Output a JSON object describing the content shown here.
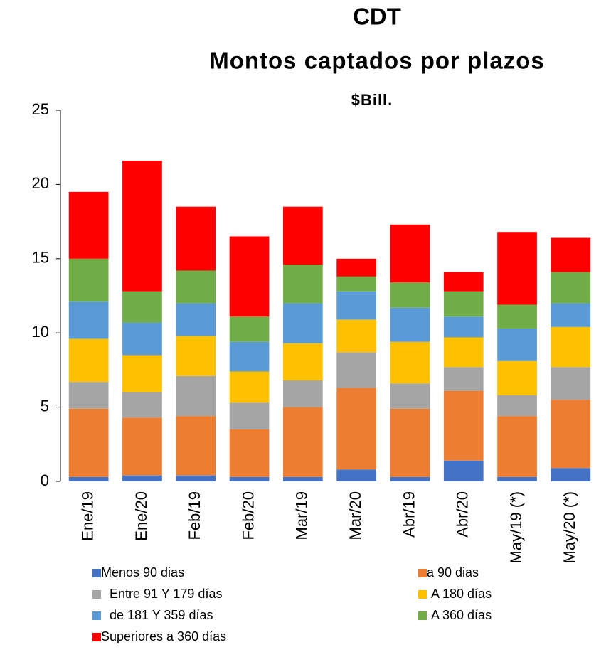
{
  "chart_data": {
    "type": "stacked_bar",
    "title": "CDT",
    "subtitle": "Montos captados por plazos",
    "unit_label": "$Bill.",
    "categories": [
      "Ene/19",
      "Ene/20",
      "Feb/19",
      "Feb/20",
      "Mar/19",
      "Mar/20",
      "Abr/19",
      "Abr/20",
      "May/19 (*)",
      "May/20 (*)"
    ],
    "series": [
      {
        "name": "Menos 90 dias",
        "color": "#4472c4",
        "values": [
          0.3,
          0.4,
          0.4,
          0.3,
          0.3,
          0.8,
          0.3,
          1.4,
          0.3,
          0.9
        ]
      },
      {
        "name": "a 90 dias",
        "color": "#ed7d31",
        "values": [
          4.6,
          3.9,
          4.0,
          3.2,
          4.7,
          5.5,
          4.6,
          4.7,
          4.1,
          4.6
        ]
      },
      {
        "name": "Entre 91 Y 179 días",
        "color": "#a5a5a5",
        "values": [
          1.8,
          1.7,
          2.7,
          1.8,
          1.8,
          2.4,
          1.7,
          1.6,
          1.4,
          2.2
        ]
      },
      {
        "name": "A 180 días",
        "color": "#ffc000",
        "values": [
          2.9,
          2.5,
          2.7,
          2.1,
          2.5,
          2.2,
          2.8,
          2.0,
          2.3,
          2.7
        ]
      },
      {
        "name": "de 181 Y 359 días",
        "color": "#5b9bd5",
        "values": [
          2.5,
          2.2,
          2.2,
          2.0,
          2.7,
          1.9,
          2.3,
          1.4,
          2.2,
          1.6
        ]
      },
      {
        "name": "A 360 días",
        "color": "#70ad47",
        "values": [
          2.9,
          2.1,
          2.2,
          1.7,
          2.6,
          1.0,
          1.7,
          1.7,
          1.6,
          2.1
        ]
      },
      {
        "name": "Superiores a 360 días",
        "color": "#ff0000",
        "values": [
          4.5,
          8.8,
          4.3,
          5.4,
          3.9,
          1.2,
          3.9,
          1.3,
          4.9,
          2.3
        ]
      }
    ],
    "ylim": [
      0,
      25
    ],
    "yticks": [
      0,
      5,
      10,
      15,
      20,
      25
    ],
    "grid": false,
    "legend": "bottom"
  }
}
